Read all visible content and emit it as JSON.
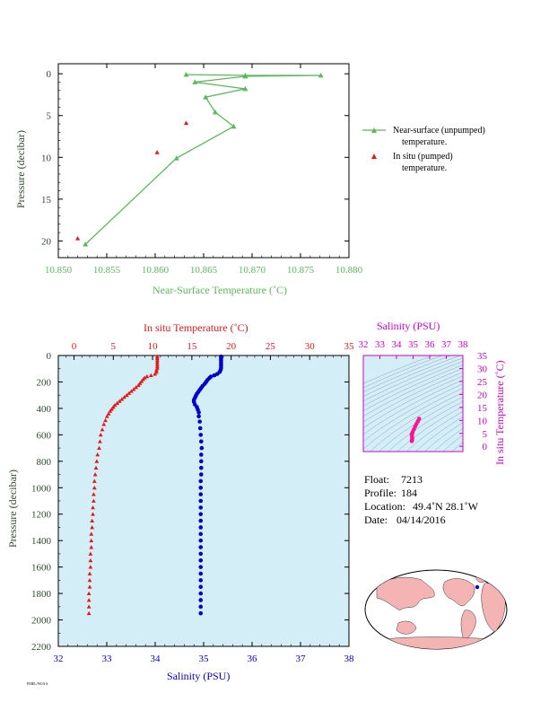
{
  "chart_data": [
    {
      "type": "line",
      "id": "near-surface",
      "xlabel": "Near-Surface Temperature (˚C)",
      "ylabel": "Pressure (decibar)",
      "xlim": [
        10.85,
        10.88
      ],
      "ylim": [
        22,
        -1.2
      ],
      "xticks": [
        "10.850",
        "10.855",
        "10.860",
        "10.865",
        "10.870",
        "10.875",
        "10.880"
      ],
      "yticks": [
        "0",
        "5",
        "10",
        "15",
        "20"
      ],
      "colors": {
        "near": "#5cb85c",
        "insitu": "#e31a1c"
      },
      "series": [
        {
          "name": "Near-surface (unpumped) temperature.",
          "marker": "triangle",
          "points": [
            [
              10.8632,
              0.1
            ],
            [
              10.8693,
              0.2
            ],
            [
              10.8771,
              0.2
            ],
            [
              10.8693,
              0.3
            ],
            [
              10.8641,
              1.0
            ],
            [
              10.8693,
              1.8
            ],
            [
              10.8652,
              2.8
            ],
            [
              10.8662,
              4.6
            ],
            [
              10.8681,
              6.3
            ],
            [
              10.8622,
              10.1
            ],
            [
              10.8528,
              20.4
            ]
          ]
        },
        {
          "name": "In situ (pumped) temperature.",
          "marker": "triangle",
          "points": [
            [
              10.8632,
              5.9
            ],
            [
              10.8602,
              9.4
            ],
            [
              10.852,
              19.7
            ]
          ]
        }
      ],
      "legend": {
        "near_line1": "Near-surface (unpumped)",
        "near_line2": "temperature.",
        "insitu_line1": "In situ (pumped)",
        "insitu_line2": "temperature."
      }
    },
    {
      "type": "scatter",
      "id": "profile",
      "ylabel": "Pressure (decibar)",
      "top_xlabel": "In situ Temperature (˚C)",
      "bottom_xlabel": "Salinity (PSU)",
      "ylim": [
        0,
        2200
      ],
      "temp_lim": [
        -2,
        35
      ],
      "sal_lim": [
        32,
        38
      ],
      "yticks": [
        "0",
        "200",
        "400",
        "600",
        "800",
        "1000",
        "1200",
        "1400",
        "1600",
        "1800",
        "2000",
        "2200"
      ],
      "temp_ticks": [
        "0",
        "5",
        "10",
        "15",
        "20",
        "25",
        "30",
        "35"
      ],
      "sal_ticks": [
        "32",
        "33",
        "34",
        "35",
        "36",
        "37",
        "38"
      ],
      "colors": {
        "temp": "#e31a1c",
        "sal": "#0000cc",
        "bg": "#d4eef8"
      },
      "temperature": [
        [
          10.6,
          8
        ],
        [
          10.6,
          20
        ],
        [
          10.6,
          35
        ],
        [
          10.6,
          50
        ],
        [
          10.6,
          65
        ],
        [
          10.6,
          80
        ],
        [
          10.6,
          95
        ],
        [
          10.5,
          110
        ],
        [
          10.5,
          125
        ],
        [
          10.3,
          140
        ],
        [
          9.8,
          150
        ],
        [
          9.3,
          158
        ],
        [
          9.0,
          168
        ],
        [
          8.8,
          180
        ],
        [
          8.6,
          195
        ],
        [
          8.4,
          210
        ],
        [
          8.2,
          225
        ],
        [
          7.9,
          240
        ],
        [
          7.6,
          255
        ],
        [
          7.3,
          270
        ],
        [
          7.0,
          285
        ],
        [
          6.7,
          300
        ],
        [
          6.4,
          315
        ],
        [
          6.1,
          330
        ],
        [
          5.8,
          345
        ],
        [
          5.5,
          360
        ],
        [
          5.2,
          375
        ],
        [
          5.0,
          390
        ],
        [
          4.8,
          405
        ],
        [
          4.6,
          420
        ],
        [
          4.4,
          440
        ],
        [
          4.2,
          460
        ],
        [
          4.0,
          490
        ],
        [
          3.8,
          520
        ],
        [
          3.6,
          560
        ],
        [
          3.4,
          600
        ],
        [
          3.3,
          650
        ],
        [
          3.2,
          700
        ],
        [
          3.0,
          750
        ],
        [
          2.9,
          800
        ],
        [
          2.8,
          850
        ],
        [
          2.7,
          900
        ],
        [
          2.6,
          950
        ],
        [
          2.6,
          1000
        ],
        [
          2.5,
          1050
        ],
        [
          2.5,
          1100
        ],
        [
          2.4,
          1150
        ],
        [
          2.4,
          1200
        ],
        [
          2.3,
          1250
        ],
        [
          2.3,
          1300
        ],
        [
          2.2,
          1350
        ],
        [
          2.2,
          1400
        ],
        [
          2.2,
          1450
        ],
        [
          2.1,
          1500
        ],
        [
          2.1,
          1550
        ],
        [
          2.1,
          1600
        ],
        [
          2.0,
          1650
        ],
        [
          2.0,
          1700
        ],
        [
          2.0,
          1750
        ],
        [
          1.9,
          1800
        ],
        [
          1.9,
          1850
        ],
        [
          1.9,
          1900
        ],
        [
          1.9,
          1950
        ]
      ],
      "salinity": [
        [
          35.36,
          8
        ],
        [
          35.36,
          20
        ],
        [
          35.36,
          35
        ],
        [
          35.36,
          50
        ],
        [
          35.36,
          65
        ],
        [
          35.36,
          80
        ],
        [
          35.36,
          95
        ],
        [
          35.35,
          110
        ],
        [
          35.33,
          125
        ],
        [
          35.28,
          140
        ],
        [
          35.22,
          150
        ],
        [
          35.15,
          160
        ],
        [
          35.12,
          170
        ],
        [
          35.08,
          185
        ],
        [
          35.05,
          200
        ],
        [
          35.02,
          215
        ],
        [
          34.98,
          230
        ],
        [
          34.95,
          245
        ],
        [
          34.92,
          260
        ],
        [
          34.89,
          275
        ],
        [
          34.86,
          290
        ],
        [
          34.84,
          305
        ],
        [
          34.82,
          320
        ],
        [
          34.8,
          335
        ],
        [
          34.8,
          350
        ],
        [
          34.82,
          370
        ],
        [
          34.86,
          390
        ],
        [
          34.88,
          410
        ],
        [
          34.9,
          430
        ],
        [
          34.9,
          460
        ],
        [
          34.92,
          500
        ],
        [
          34.93,
          550
        ],
        [
          34.94,
          600
        ],
        [
          34.95,
          650
        ],
        [
          34.96,
          700
        ],
        [
          34.95,
          750
        ],
        [
          34.95,
          800
        ],
        [
          34.95,
          850
        ],
        [
          34.95,
          900
        ],
        [
          34.94,
          950
        ],
        [
          34.94,
          1000
        ],
        [
          34.94,
          1050
        ],
        [
          34.94,
          1100
        ],
        [
          34.94,
          1150
        ],
        [
          34.94,
          1200
        ],
        [
          34.94,
          1250
        ],
        [
          34.94,
          1300
        ],
        [
          34.94,
          1350
        ],
        [
          34.94,
          1400
        ],
        [
          34.94,
          1450
        ],
        [
          34.94,
          1500
        ],
        [
          34.94,
          1550
        ],
        [
          34.94,
          1600
        ],
        [
          34.94,
          1650
        ],
        [
          34.94,
          1700
        ],
        [
          34.94,
          1750
        ],
        [
          34.94,
          1800
        ],
        [
          34.94,
          1850
        ],
        [
          34.94,
          1900
        ],
        [
          34.94,
          1950
        ]
      ]
    },
    {
      "type": "scatter",
      "id": "ts-diagram",
      "xlabel": "Salinity (PSU)",
      "ylabel": "In situ Temperature (˚C)",
      "xlim": [
        32,
        38
      ],
      "ylim": [
        -2,
        35
      ],
      "xticks": [
        "32",
        "33",
        "34",
        "35",
        "36",
        "37",
        "38"
      ],
      "yticks": [
        "0",
        "5",
        "10",
        "15",
        "20",
        "25",
        "30",
        "35"
      ],
      "colors": {
        "points": "#ff1493",
        "frame": "#cc00cc",
        "contours": "#8aa0b4",
        "bg": "#d4eef8"
      },
      "points": [
        [
          34.92,
          2.0
        ],
        [
          34.94,
          2.4
        ],
        [
          34.94,
          2.8
        ],
        [
          34.95,
          3.3
        ],
        [
          34.93,
          4.0
        ],
        [
          34.92,
          4.6
        ],
        [
          34.95,
          5.0
        ],
        [
          34.98,
          5.6
        ],
        [
          35.05,
          6.6
        ],
        [
          35.12,
          7.6
        ],
        [
          35.2,
          8.6
        ],
        [
          35.28,
          9.6
        ],
        [
          35.36,
          10.6
        ]
      ]
    }
  ],
  "info": {
    "float_label": "Float:",
    "float_value": "7213",
    "profile_label": "Profile:",
    "profile_value": "184",
    "location_label": "Location:",
    "location_value": "49.4˚N 28.1˚W",
    "date_label": "Date:",
    "date_value": "04/14/2016"
  },
  "map": {
    "land_color": "#f4b4b4",
    "ocean_color": "#ffffff",
    "marker_color": "#0000cc"
  },
  "footer": {
    "credit": "PMEL/NOAA"
  }
}
